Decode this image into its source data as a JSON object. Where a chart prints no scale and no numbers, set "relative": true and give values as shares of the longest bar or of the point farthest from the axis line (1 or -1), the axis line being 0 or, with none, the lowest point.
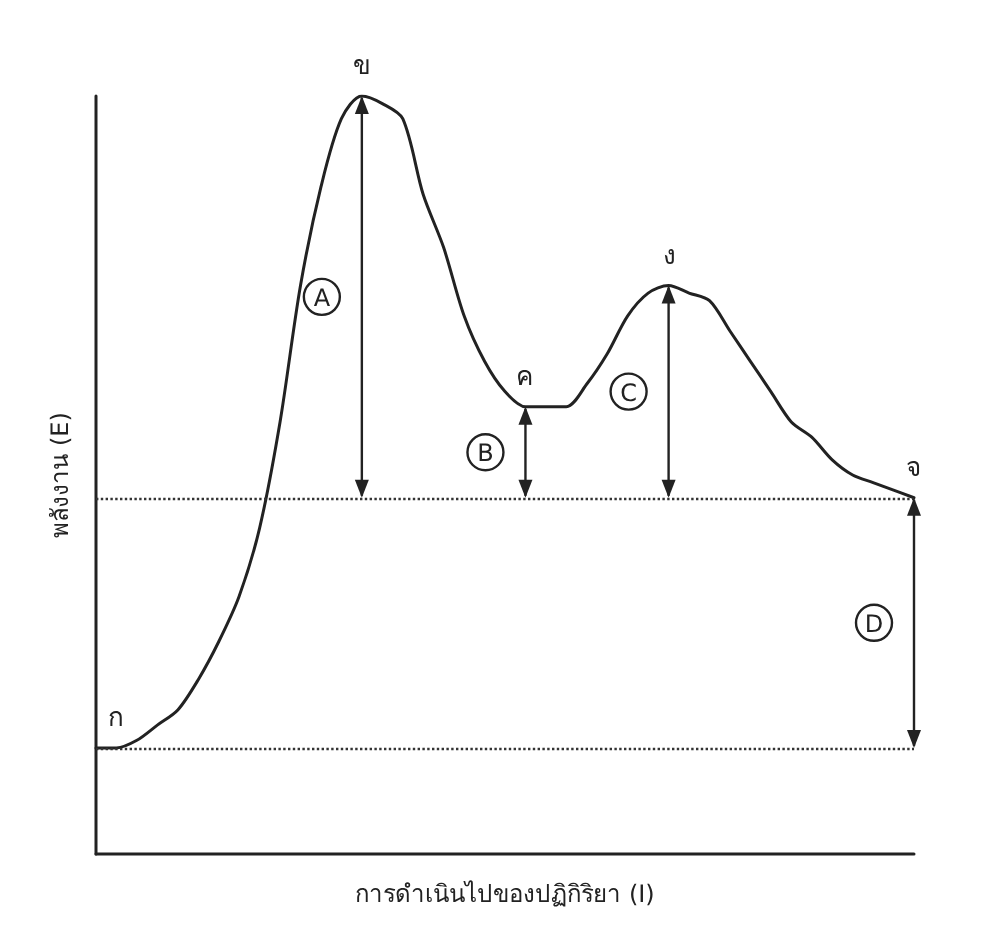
{
  "chart_data": {
    "type": "line",
    "relative": true,
    "xlabel": "การดำเนินไปของปฏิกิริยา (I)",
    "ylabel": "พลังงาน (E)",
    "categories": [
      null,
      null,
      null,
      null,
      null,
      null,
      null,
      null,
      null,
      null,
      null,
      null,
      null,
      null,
      null,
      null,
      null,
      null,
      null,
      null,
      null,
      null,
      null,
      null,
      null,
      null,
      null,
      null,
      null,
      null,
      null,
      null,
      null,
      null,
      null,
      null,
      null,
      null,
      null,
      null,
      null
    ],
    "series": [
      {
        "color": "#222222",
        "values": [
          0.14,
          0.14,
          0.15,
          0.17,
          0.19,
          0.23,
          0.28,
          0.34,
          0.43,
          0.57,
          0.75,
          0.88,
          0.97,
          1,
          0.99,
          0.97,
          0.87,
          0.8,
          0.71,
          0.65,
          0.61,
          0.59,
          0.59,
          0.59,
          0.62,
          0.66,
          0.71,
          0.74,
          0.75,
          0.74,
          0.73,
          0.69,
          0.65,
          0.61,
          0.57,
          0.55,
          0.52,
          0.5,
          0.49,
          0.48,
          0.47
        ]
      }
    ],
    "ref_lines": [
      {
        "axis": "y",
        "value": 0.14,
        "line_style": "dotted",
        "color": "#333333"
      },
      {
        "axis": "y",
        "value": 0.47,
        "line_style": "dotted",
        "color": "#333333"
      }
    ],
    "annotations": [
      {
        "text": "ก",
        "y": 0.14
      },
      {
        "text": "ข",
        "y": 1
      },
      {
        "text": "ค",
        "y": 0.59
      },
      {
        "text": "ง",
        "y": 0.75
      },
      {
        "text": "จ",
        "y": 0.47
      },
      "A",
      "B",
      "C",
      "D"
    ],
    "grid": false,
    "marker": "none",
    "line_style": "solid"
  }
}
